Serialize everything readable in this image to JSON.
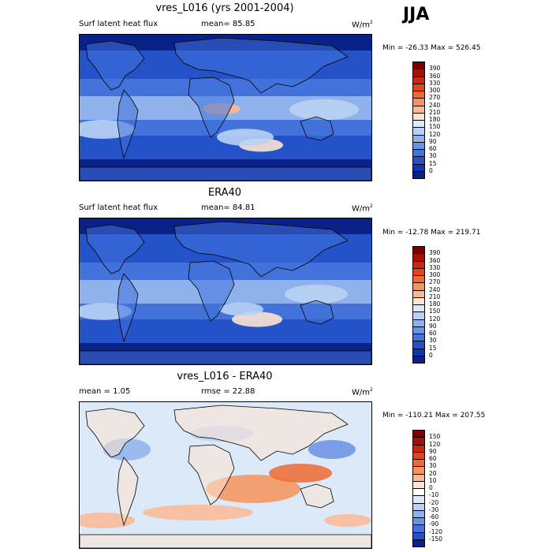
{
  "season": "JJA",
  "panels": [
    {
      "title": "vres_L016 (yrs 2001-2004)",
      "left_label": "Surf latent heat flux",
      "center_label": "mean=  85.85",
      "units": "W/m",
      "units_sup": "2",
      "minmax": "Min = -26.33 Max = 526.45",
      "palette": "sequential",
      "colorbar": {
        "labels": [
          "390",
          "360",
          "330",
          "300",
          "270",
          "240",
          "210",
          "180",
          "150",
          "120",
          "90",
          "60",
          "30",
          "15",
          "0"
        ],
        "colors": [
          "#7a0000",
          "#a51008",
          "#c8280f",
          "#e0461c",
          "#ef6a33",
          "#f6925a",
          "#fbb994",
          "#fde3d2",
          "#dce9f8",
          "#b9d2f4",
          "#8fb2ec",
          "#6892e4",
          "#4272da",
          "#2453c9",
          "#0f36ad",
          "#0a2288"
        ]
      }
    },
    {
      "title": "ERA40",
      "left_label": "Surf latent heat flux",
      "center_label": "mean=  84.81",
      "units": "W/m",
      "units_sup": "2",
      "minmax": "Min = -12.78 Max = 219.71",
      "palette": "sequential",
      "colorbar": {
        "labels": [
          "390",
          "360",
          "330",
          "300",
          "270",
          "240",
          "210",
          "180",
          "150",
          "120",
          "90",
          "60",
          "30",
          "15",
          "0"
        ],
        "colors": [
          "#7a0000",
          "#a51008",
          "#c8280f",
          "#e0461c",
          "#ef6a33",
          "#f6925a",
          "#fbb994",
          "#fde3d2",
          "#dce9f8",
          "#b9d2f4",
          "#8fb2ec",
          "#6892e4",
          "#4272da",
          "#2453c9",
          "#0f36ad",
          "#0a2288"
        ]
      }
    },
    {
      "title": "vres_L016 - ERA40",
      "left_label": "mean =   1.05",
      "center_label": "rmse =  22.88",
      "units": "W/m",
      "units_sup": "2",
      "minmax": "Min = -110.21 Max = 207.55",
      "palette": "diverging",
      "colorbar": {
        "labels": [
          "150",
          "120",
          "90",
          "60",
          "30",
          "20",
          "10",
          "0",
          "-10",
          "-20",
          "-30",
          "-60",
          "-90",
          "-120",
          "-150"
        ],
        "colors": [
          "#7a0000",
          "#a51008",
          "#c8280f",
          "#e0461c",
          "#ef6a33",
          "#f6925a",
          "#fbb994",
          "#fde3d2",
          "#ffffff",
          "#dce9f8",
          "#b9d2f4",
          "#8fb2ec",
          "#6892e4",
          "#4272da",
          "#2453c9",
          "#0a2288"
        ]
      }
    }
  ]
}
